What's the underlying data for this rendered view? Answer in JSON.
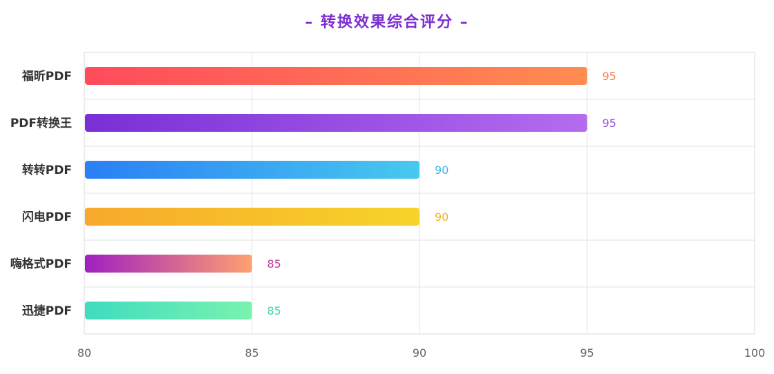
{
  "chart_data": {
    "type": "bar",
    "orientation": "horizontal",
    "title": "– 转换效果综合评分 –",
    "categories": [
      "福昕PDF",
      "PDF转换王",
      "转转PDF",
      "闪电PDF",
      "嗨格式PDF",
      "迅捷PDF"
    ],
    "values": [
      95,
      95,
      90,
      90,
      85,
      85
    ],
    "xlim": [
      80,
      100
    ],
    "xticks": [
      80,
      85,
      90,
      95,
      100
    ],
    "grid": true,
    "legend": "none",
    "colors": {
      "title": "#7b2fd0",
      "grid": "#e6e6e6",
      "bars": [
        {
          "from": "#ff4b5c",
          "to": "#ff8c50",
          "label": "#ff7b4a"
        },
        {
          "from": "#7a2fd6",
          "to": "#b46cef",
          "label": "#9a4de6"
        },
        {
          "from": "#2a7ff4",
          "to": "#48c9f0",
          "label": "#3fb8ea"
        },
        {
          "from": "#f7a92b",
          "to": "#f7d42a",
          "label": "#f0b624"
        },
        {
          "from": "#a020c0",
          "to": "#ffa070",
          "label": "#c0409c"
        },
        {
          "from": "#3fdcbf",
          "to": "#7af2b0",
          "label": "#46d4b4"
        }
      ]
    }
  }
}
